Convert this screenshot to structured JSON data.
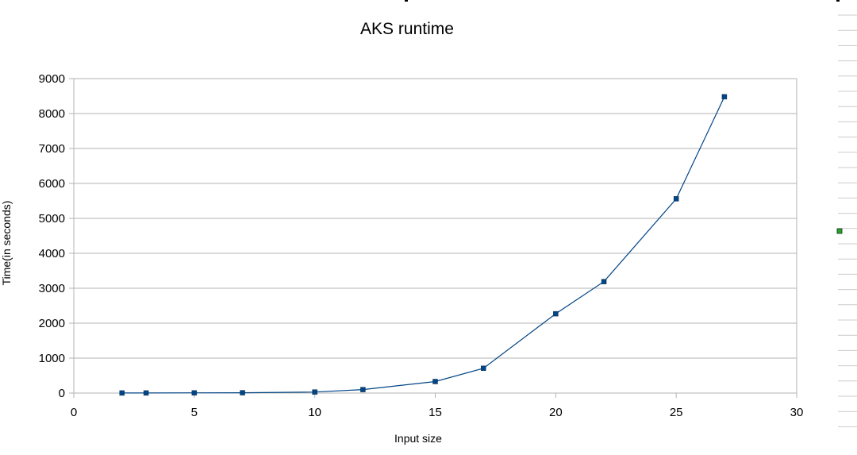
{
  "chart_data": {
    "type": "line",
    "title": "AKS runtime",
    "xlabel": "Input size",
    "ylabel": "Time(in seconds)",
    "xlim": [
      0,
      30
    ],
    "ylim": [
      0,
      9000
    ],
    "x_ticks": [
      0,
      5,
      10,
      15,
      20,
      25,
      30
    ],
    "y_ticks": [
      0,
      1000,
      2000,
      3000,
      4000,
      5000,
      6000,
      7000,
      8000,
      9000
    ],
    "grid": true,
    "legend": "right",
    "series": [
      {
        "color": "#004586",
        "x": [
          2,
          3,
          5,
          7,
          10,
          12,
          15,
          17,
          20,
          22,
          25,
          27
        ],
        "y": [
          2,
          3,
          6,
          10,
          30,
          100,
          330,
          710,
          2270,
          3190,
          5560,
          8480
        ]
      }
    ],
    "legend_entries": [
      {
        "color": "#2e9e2e"
      }
    ]
  }
}
